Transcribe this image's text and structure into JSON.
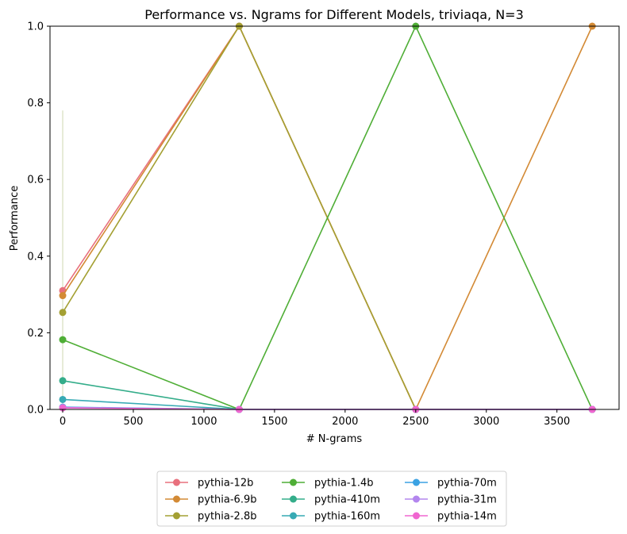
{
  "chart_data": {
    "type": "line",
    "title": "Performance vs. Ngrams for Different Models, triviaqa, N=3",
    "xlabel": "# N-grams",
    "ylabel": "Performance",
    "xlim": [
      -90,
      3940
    ],
    "ylim": [
      0,
      1.0
    ],
    "xticks": [
      0,
      500,
      1000,
      1500,
      2000,
      2500,
      3000,
      3500
    ],
    "yticks": [
      0.0,
      0.2,
      0.4,
      0.6,
      0.8,
      1.0
    ],
    "x": [
      0,
      1250,
      2500,
      3750
    ],
    "legend_position": "bottom-center",
    "series": [
      {
        "name": "pythia-12b",
        "color": "#e8707d",
        "values": [
          0.31,
          1.0,
          0.0,
          0.0
        ]
      },
      {
        "name": "pythia-6.9b",
        "color": "#d38a35",
        "values": [
          0.297,
          1.0,
          0.0,
          1.0
        ]
      },
      {
        "name": "pythia-2.8b",
        "color": "#a4a033",
        "values": [
          0.253,
          1.0,
          0.0,
          0.0
        ]
      },
      {
        "name": "pythia-1.4b",
        "color": "#4fae36",
        "values": [
          0.182,
          0.0,
          1.0,
          0.0
        ]
      },
      {
        "name": "pythia-410m",
        "color": "#34ad8a",
        "values": [
          0.075,
          0.0,
          0.0,
          0.0
        ]
      },
      {
        "name": "pythia-160m",
        "color": "#37aab4",
        "values": [
          0.026,
          0.0,
          0.0,
          0.0
        ]
      },
      {
        "name": "pythia-70m",
        "color": "#3ba2e3",
        "values": [
          0.006,
          0.0,
          0.0,
          0.0
        ]
      },
      {
        "name": "pythia-31m",
        "color": "#b386ee",
        "values": [
          0.005,
          0.0,
          0.0,
          0.0
        ]
      },
      {
        "name": "pythia-14m",
        "color": "#f066d0",
        "values": [
          0.004,
          0.0,
          0.0,
          0.0
        ]
      }
    ]
  }
}
